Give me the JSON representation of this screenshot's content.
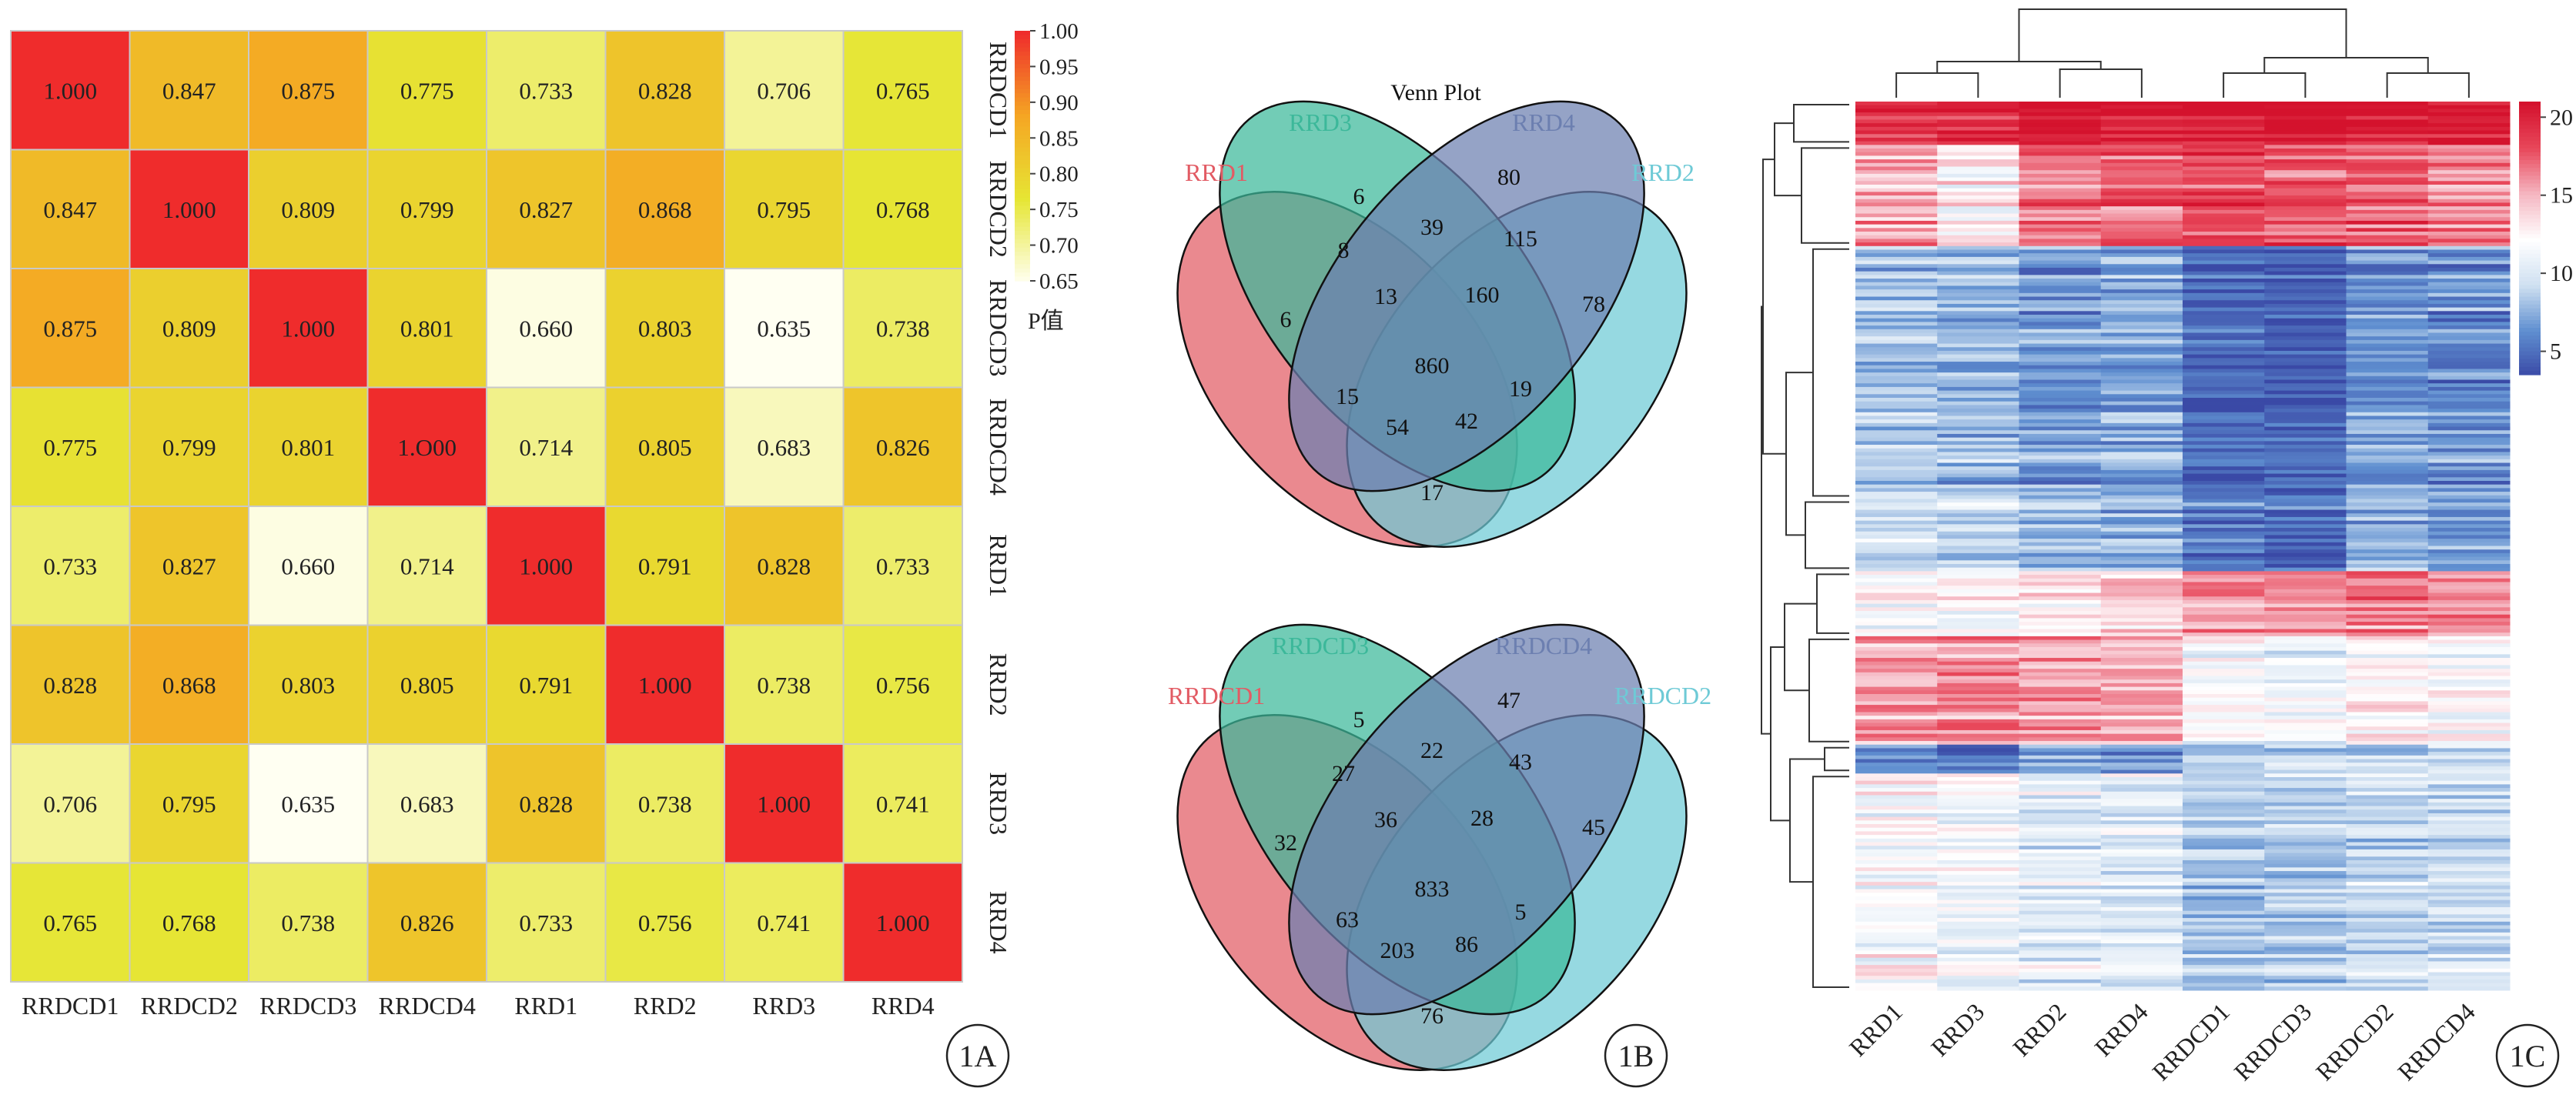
{
  "panels": {
    "a": {
      "label": "1A"
    },
    "b": {
      "label": "1B"
    },
    "c": {
      "label": "1C"
    }
  },
  "chart_data": [
    {
      "type": "heatmap",
      "panel": "1A",
      "title": "",
      "rows": [
        "RRDCD1",
        "RRDCD2",
        "RRDCD3",
        "RRDCD4",
        "RRD1",
        "RRD2",
        "RRD3",
        "RRD4"
      ],
      "columns": [
        "RRDCD1",
        "RRDCD2",
        "RRDCD3",
        "RRDCD4",
        "RRD1",
        "RRD2",
        "RRD3",
        "RRD4"
      ],
      "values": [
        [
          1.0,
          0.847,
          0.875,
          0.775,
          0.733,
          0.828,
          0.706,
          0.765
        ],
        [
          0.847,
          1.0,
          0.809,
          0.799,
          0.827,
          0.868,
          0.795,
          0.768
        ],
        [
          0.875,
          0.809,
          1.0,
          0.801,
          0.66,
          0.803,
          0.635,
          0.738
        ],
        [
          0.775,
          0.799,
          0.801,
          1.0,
          0.714,
          0.805,
          0.683,
          0.826
        ],
        [
          0.733,
          0.827,
          0.66,
          0.714,
          1.0,
          0.791,
          0.828,
          0.733
        ],
        [
          0.828,
          0.868,
          0.803,
          0.805,
          0.791,
          1.0,
          0.738,
          0.756
        ],
        [
          0.706,
          0.795,
          0.635,
          0.683,
          0.828,
          0.738,
          1.0,
          0.741
        ],
        [
          0.765,
          0.768,
          0.738,
          0.826,
          0.733,
          0.756,
          0.741,
          1.0
        ]
      ],
      "cell_labels": [
        [
          "1.000",
          "0.847",
          "0.875",
          "0.775",
          "0.733",
          "0.828",
          "0.706",
          "0.765"
        ],
        [
          "0.847",
          "1.000",
          "0.809",
          "0.799",
          "0.827",
          "0.868",
          "0.795",
          "0.768"
        ],
        [
          "0.875",
          "0.809",
          "1.000",
          "0.801",
          "0.660",
          "0.803",
          "0.635",
          "0.738"
        ],
        [
          "0.775",
          "0.799",
          "0.801",
          "1.O00",
          "0.714",
          "0.805",
          "0.683",
          "0.826"
        ],
        [
          "0.733",
          "0.827",
          "0.660",
          "0.714",
          "1.000",
          "0.791",
          "0.828",
          "0.733"
        ],
        [
          "0.828",
          "0.868",
          "0.803",
          "0.805",
          "0.791",
          "1.000",
          "0.738",
          "0.756"
        ],
        [
          "0.706",
          "0.795",
          "0.635",
          "0.683",
          "0.828",
          "0.738",
          "1.000",
          "0.741"
        ],
        [
          "0.765",
          "0.768",
          "0.738",
          "0.826",
          "0.733",
          "0.756",
          "0.741",
          "1.000"
        ]
      ],
      "colorbar": {
        "title": "P值",
        "range": [
          0.65,
          1.0
        ],
        "ticks": [
          "1.00",
          "0.95",
          "0.90",
          "0.85",
          "0.80",
          "0.75",
          "0.70",
          "0.65"
        ],
        "colors": [
          "#fffff2",
          "#e6e634",
          "#f5a623",
          "#ef2c2c"
        ]
      }
    },
    {
      "type": "venn",
      "panel": "1B",
      "title": "Venn Plot",
      "sets": [
        {
          "name": "RRD1",
          "color": "#e25b64"
        },
        {
          "name": "RRD3",
          "color": "#3cb89a"
        },
        {
          "name": "RRD4",
          "color": "#6c7fb0"
        },
        {
          "name": "RRD2",
          "color": "#6ecad6"
        }
      ],
      "regions": [
        6,
        6,
        80,
        78,
        8,
        39,
        115,
        13,
        160,
        860,
        15,
        19,
        54,
        42,
        17
      ],
      "region_keys": [
        "A",
        "B",
        "C",
        "D",
        "AB",
        "BC",
        "CD",
        "ABC",
        "BCD",
        "ABCD",
        "AC",
        "BD",
        "ACD",
        "ABD",
        "AD"
      ]
    },
    {
      "type": "venn",
      "panel": "1B",
      "title": "",
      "sets": [
        {
          "name": "RRDCD1",
          "color": "#e25b64"
        },
        {
          "name": "RRDCD3",
          "color": "#3cb89a"
        },
        {
          "name": "RRDCD4",
          "color": "#6c7fb0"
        },
        {
          "name": "RRDCD2",
          "color": "#6ecad6"
        }
      ],
      "regions": [
        32,
        5,
        47,
        45,
        27,
        22,
        43,
        36,
        28,
        833,
        63,
        5,
        203,
        86,
        76
      ],
      "region_keys": [
        "A",
        "B",
        "C",
        "D",
        "AB",
        "BC",
        "CD",
        "ABC",
        "BCD",
        "ABCD",
        "AC",
        "BD",
        "ACD",
        "ABD",
        "AD"
      ]
    },
    {
      "type": "heatmap",
      "panel": "1C",
      "title": "",
      "columns": [
        "RRD1",
        "RRD3",
        "RRD2",
        "RRD4",
        "RRDCD1",
        "RRDCD3",
        "RRDCD2",
        "RRDCD4"
      ],
      "clusters": [
        {
          "rows": 12,
          "levels": [
            19.5,
            19.8,
            20.5,
            20.3,
            20.9,
            20.8,
            20.6,
            20.4
          ]
        },
        {
          "rows": 28,
          "levels": [
            15.5,
            13.0,
            17.0,
            17.5,
            18.5,
            18.0,
            18.0,
            16.5
          ]
        },
        {
          "rows": 70,
          "levels": [
            8.5,
            8.0,
            7.0,
            7.5,
            5.0,
            4.8,
            7.0,
            6.5
          ]
        },
        {
          "rows": 20,
          "levels": [
            9.5,
            9.0,
            8.5,
            8.0,
            5.5,
            5.0,
            8.0,
            7.0
          ]
        },
        {
          "rows": 18,
          "levels": [
            11.5,
            12.0,
            13.0,
            14.0,
            16.0,
            15.5,
            16.5,
            16.0
          ]
        },
        {
          "rows": 30,
          "levels": [
            15.5,
            16.0,
            15.5,
            15.0,
            11.5,
            11.0,
            12.5,
            11.5
          ]
        },
        {
          "rows": 8,
          "levels": [
            7.0,
            6.0,
            7.5,
            6.5,
            9.0,
            9.5,
            9.5,
            10.0
          ]
        },
        {
          "rows": 60,
          "levels": [
            12.0,
            11.5,
            10.5,
            10.5,
            8.5,
            9.0,
            9.5,
            9.5
          ]
        }
      ],
      "colorbar": {
        "range": [
          3.5,
          21
        ],
        "ticks": [
          "20",
          "15",
          "10",
          "5"
        ],
        "colors": [
          "#3a49a6",
          "#5f8fd0",
          "#cfe0f1",
          "#ffffff",
          "#f5b7c2",
          "#e8485b",
          "#d4122d"
        ]
      }
    }
  ]
}
